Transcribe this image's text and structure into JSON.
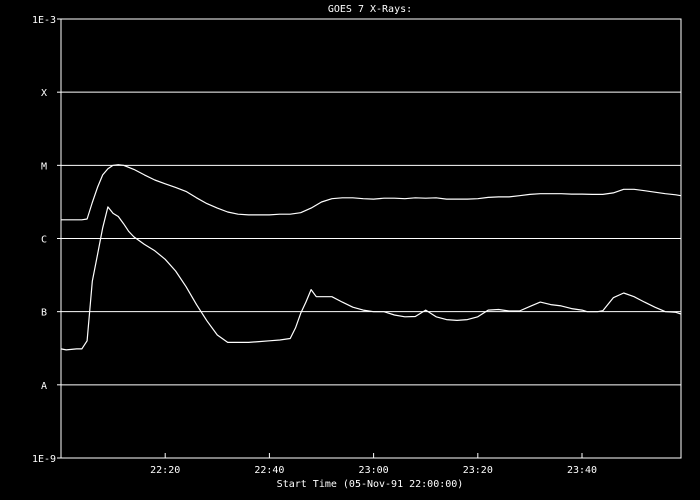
{
  "chart_data": {
    "type": "line",
    "title": "GOES 7 X-Rays:",
    "xlabel": "Start Time (05-Nov-91 22:00:00)",
    "ylabel": "",
    "x_unit": "minutes after 22:00:00",
    "xlim": [
      0,
      119
    ],
    "ylim": [
      1e-09,
      0.001
    ],
    "y_scale": "log",
    "x_ticks": [
      {
        "x": 20,
        "label": "22:20"
      },
      {
        "x": 40,
        "label": "22:40"
      },
      {
        "x": 60,
        "label": "23:00"
      },
      {
        "x": 80,
        "label": "23:20"
      },
      {
        "x": 100,
        "label": "23:40"
      }
    ],
    "y_ticks": [
      {
        "y": 0.001,
        "label": "1E-3"
      },
      {
        "y": 0.0001,
        "label": "X"
      },
      {
        "y": 1e-05,
        "label": "M"
      },
      {
        "y": 1e-06,
        "label": "C"
      },
      {
        "y": 1e-07,
        "label": "B"
      },
      {
        "y": 1e-08,
        "label": "A"
      },
      {
        "y": 1e-09,
        "label": "1E-9"
      }
    ],
    "gridlines_y": [
      0.0001,
      1e-05,
      1e-06,
      1e-07,
      1e-08
    ],
    "grid": true,
    "series": [
      {
        "color": "#ffffff",
        "x": [
          0,
          2,
          4,
          5,
          6,
          7,
          8,
          9,
          10,
          11,
          12,
          14,
          16,
          18,
          20,
          22,
          24,
          26,
          28,
          30,
          32,
          34,
          36,
          38,
          40,
          42,
          44,
          46,
          48,
          50,
          52,
          54,
          56,
          58,
          60,
          62,
          64,
          66,
          68,
          70,
          72,
          74,
          76,
          78,
          80,
          82,
          84,
          86,
          88,
          90,
          92,
          94,
          96,
          98,
          100,
          102,
          104,
          106,
          108,
          110,
          112,
          114,
          116,
          118,
          119
        ],
        "y": [
          1.8e-06,
          1.8e-06,
          1.8e-06,
          1.85e-06,
          3.1e-06,
          5e-06,
          7.4e-06,
          9e-06,
          1e-05,
          1.02e-05,
          1e-05,
          8.8e-06,
          7.4e-06,
          6.3e-06,
          5.6e-06,
          5e-06,
          4.4e-06,
          3.6e-06,
          3e-06,
          2.6e-06,
          2.3e-06,
          2.15e-06,
          2.1e-06,
          2.1e-06,
          2.1e-06,
          2.15e-06,
          2.15e-06,
          2.25e-06,
          2.6e-06,
          3.15e-06,
          3.5e-06,
          3.6e-06,
          3.6e-06,
          3.5e-06,
          3.45e-06,
          3.55e-06,
          3.55e-06,
          3.5e-06,
          3.6e-06,
          3.55e-06,
          3.6e-06,
          3.45e-06,
          3.45e-06,
          3.45e-06,
          3.5e-06,
          3.65e-06,
          3.7e-06,
          3.7e-06,
          3.85e-06,
          4e-06,
          4.1e-06,
          4.1e-06,
          4.1e-06,
          4.05e-06,
          4.05e-06,
          4e-06,
          4e-06,
          4.2e-06,
          4.7e-06,
          4.7e-06,
          4.5e-06,
          4.3e-06,
          4.1e-06,
          3.95e-06,
          3.85e-06
        ]
      },
      {
        "color": "#ffffff",
        "x": [
          0,
          1,
          3,
          4,
          5,
          6,
          7,
          8,
          9,
          10,
          11,
          12,
          13,
          14,
          16,
          18,
          20,
          22,
          24,
          26,
          28,
          30,
          32,
          34,
          36,
          38,
          40,
          42,
          44,
          45,
          46,
          47,
          48,
          49,
          50,
          52,
          54,
          56,
          58,
          60,
          62,
          64,
          66,
          68,
          70,
          72,
          74,
          76,
          78,
          80,
          82,
          84,
          86,
          88,
          90,
          92,
          94,
          96,
          98,
          100,
          101,
          102,
          103,
          104,
          106,
          108,
          110,
          112,
          114,
          116,
          118,
          119
        ],
        "y": [
          3.1e-08,
          3e-08,
          3.1e-08,
          3.1e-08,
          4e-08,
          2.6e-07,
          6e-07,
          1.4e-06,
          2.7e-06,
          2.2e-06,
          2e-06,
          1.6e-06,
          1.25e-06,
          1.05e-06,
          8.3e-07,
          6.8e-07,
          5.2e-07,
          3.6e-07,
          2.2e-07,
          1.25e-07,
          7.5e-08,
          4.8e-08,
          3.8e-08,
          3.8e-08,
          3.8e-08,
          3.9e-08,
          4e-08,
          4.1e-08,
          4.3e-08,
          6e-08,
          9.5e-08,
          1.35e-07,
          2e-07,
          1.6e-07,
          1.6e-07,
          1.6e-07,
          1.35e-07,
          1.15e-07,
          1.05e-07,
          1e-07,
          1e-07,
          9e-08,
          8.5e-08,
          8.6e-08,
          1.05e-07,
          8.5e-08,
          7.8e-08,
          7.6e-08,
          7.8e-08,
          8.5e-08,
          1.05e-07,
          1.07e-07,
          1.02e-07,
          1.02e-07,
          1.18e-07,
          1.35e-07,
          1.25e-07,
          1.2e-07,
          1.1e-07,
          1.05e-07,
          1e-07,
          1e-07,
          1e-07,
          1.03e-07,
          1.55e-07,
          1.8e-07,
          1.6e-07,
          1.35e-07,
          1.15e-07,
          1e-07,
          9.8e-08,
          9.3e-08
        ]
      }
    ]
  }
}
